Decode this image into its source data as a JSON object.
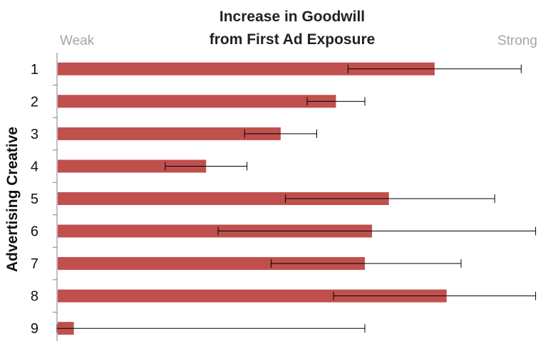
{
  "chart_data": {
    "type": "bar",
    "orientation": "horizontal",
    "title": "Increase in Goodwill from First Ad Exposure",
    "title_lines": [
      "Increase in Goodwill",
      "from First Ad Exposure"
    ],
    "scale_low_label": "Weak",
    "scale_high_label": "Strong",
    "ylabel": "Advertising Creative",
    "xlabel": "",
    "xlim": [
      0,
      100
    ],
    "categories": [
      "1",
      "2",
      "3",
      "4",
      "5",
      "6",
      "7",
      "8",
      "9"
    ],
    "values": [
      78.5,
      58,
      46.5,
      31,
      69,
      65.5,
      64,
      81,
      3.5
    ],
    "error_low": [
      60.5,
      52,
      39,
      22.5,
      47.5,
      33.5,
      44.5,
      57.5,
      0
    ],
    "error_high": [
      96.5,
      64,
      54,
      39.5,
      91,
      99.5,
      84,
      99.5,
      64
    ],
    "bar_color": "#c0504d",
    "error_bar_color": "#000000",
    "axis_color": "#7f7f7f",
    "grid": false,
    "legend": "none"
  }
}
